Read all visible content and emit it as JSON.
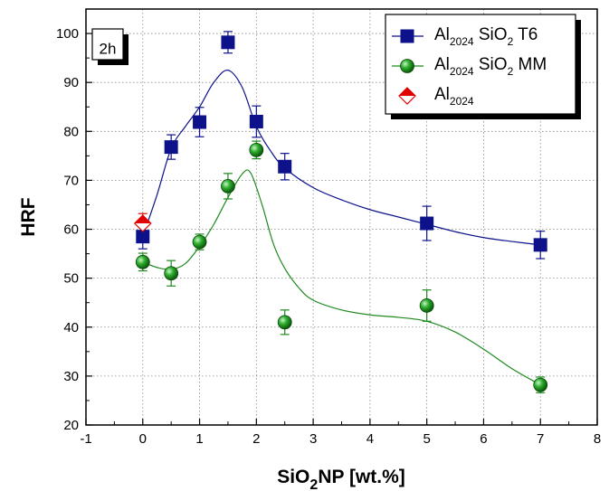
{
  "chart_data": {
    "type": "scatter",
    "panel_label": "2h",
    "ylabel": "HRF",
    "xlabel": {
      "main": "SiO",
      "sub": "2",
      "rest": "NP [wt.%]"
    },
    "xlim": [
      -1,
      8
    ],
    "ylim": [
      20,
      105
    ],
    "xticks": [
      -1,
      0,
      1,
      2,
      3,
      4,
      5,
      6,
      7,
      8
    ],
    "yticks": [
      20,
      30,
      40,
      50,
      60,
      70,
      80,
      90,
      100
    ],
    "grid": "dotted",
    "legend_position": "top-right",
    "series": [
      {
        "name": "Al2024 SiO2 T6",
        "legend": {
          "base": "Al",
          "sub1": "2024",
          "mid": " SiO",
          "sub2": "2",
          "end": " T6"
        },
        "marker": "square",
        "color": "#0d128a",
        "fill": "#0d128a",
        "points": [
          {
            "x": 0,
            "y": 58.5,
            "err": 2.5
          },
          {
            "x": 0.5,
            "y": 76.8,
            "err": 2.5
          },
          {
            "x": 1,
            "y": 81.9,
            "err": 3.0
          },
          {
            "x": 1.5,
            "y": 98.2,
            "err": 2.2
          },
          {
            "x": 2,
            "y": 82,
            "err": 3.2
          },
          {
            "x": 2.5,
            "y": 72.8,
            "err": 2.7
          },
          {
            "x": 5,
            "y": 61.2,
            "err": 3.5
          },
          {
            "x": 7,
            "y": 56.8,
            "err": 2.8
          }
        ],
        "fit": [
          [
            0,
            58.5
          ],
          [
            0.25,
            67
          ],
          [
            0.5,
            76.5
          ],
          [
            0.75,
            81
          ],
          [
            1,
            85
          ],
          [
            1.25,
            90
          ],
          [
            1.5,
            92.5
          ],
          [
            1.75,
            89
          ],
          [
            2,
            81
          ],
          [
            2.25,
            76
          ],
          [
            2.5,
            72.5
          ],
          [
            3,
            68.5
          ],
          [
            3.5,
            66
          ],
          [
            4,
            64
          ],
          [
            4.5,
            62.5
          ],
          [
            5,
            61
          ],
          [
            5.5,
            59.5
          ],
          [
            6,
            58.3
          ],
          [
            6.5,
            57.5
          ],
          [
            7,
            56.8
          ]
        ]
      },
      {
        "name": "Al2024 SiO2 MM",
        "legend": {
          "base": "Al",
          "sub1": "2024",
          "mid": " SiO",
          "sub2": "2",
          "end": " MM"
        },
        "marker": "sphere",
        "color": "#1e8a1e",
        "fill": "#1e9a1e",
        "points": [
          {
            "x": 0,
            "y": 53.3,
            "err": 1.8
          },
          {
            "x": 0.5,
            "y": 51,
            "err": 2.6
          },
          {
            "x": 1,
            "y": 57.4,
            "err": 1.6
          },
          {
            "x": 1.5,
            "y": 68.8,
            "err": 2.6
          },
          {
            "x": 2,
            "y": 76.2,
            "err": 1.8
          },
          {
            "x": 2.5,
            "y": 41,
            "err": 2.5
          },
          {
            "x": 5,
            "y": 44.4,
            "err": 3.2
          },
          {
            "x": 7,
            "y": 28.2,
            "err": 1.6
          }
        ],
        "fit": [
          [
            0,
            53.3
          ],
          [
            0.25,
            52.2
          ],
          [
            0.5,
            51.8
          ],
          [
            0.75,
            53
          ],
          [
            1,
            56.5
          ],
          [
            1.25,
            61
          ],
          [
            1.5,
            66.5
          ],
          [
            1.75,
            71.3
          ],
          [
            1.9,
            71.5
          ],
          [
            2.1,
            65
          ],
          [
            2.3,
            57
          ],
          [
            2.5,
            52
          ],
          [
            2.75,
            48
          ],
          [
            3,
            45.5
          ],
          [
            3.5,
            43.5
          ],
          [
            4,
            42.5
          ],
          [
            4.5,
            42
          ],
          [
            5,
            41.2
          ],
          [
            5.5,
            39
          ],
          [
            6,
            35.5
          ],
          [
            6.5,
            31.5
          ],
          [
            7,
            28.2
          ]
        ]
      },
      {
        "name": "Al2024",
        "legend": {
          "base": "Al",
          "sub1": "2024",
          "mid": "",
          "sub2": "",
          "end": ""
        },
        "marker": "diamond",
        "color": "#e00000",
        "fill": "#e00000",
        "points": [
          {
            "x": 0,
            "y": 61.2,
            "err": 2.0
          }
        ],
        "fit": []
      }
    ]
  }
}
